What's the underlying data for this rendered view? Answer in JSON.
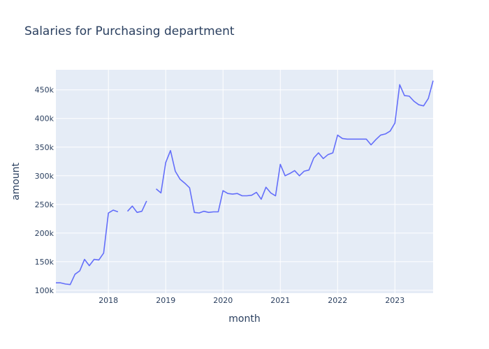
{
  "chart_data": {
    "type": "line",
    "title": "Salaries for Purchasing department",
    "xlabel": "month",
    "ylabel": "amount",
    "grid": true,
    "colors": {
      "plot_bg": "#e5ecf6",
      "line": "#636efa",
      "grid": "#ffffff",
      "text": "#2a3f5f"
    },
    "xlim": [
      "2017-02",
      "2023-09"
    ],
    "ylim": [
      95000,
      485000
    ],
    "x_ticks": [
      "2018",
      "2019",
      "2020",
      "2021",
      "2022",
      "2023"
    ],
    "y_ticks": [
      {
        "value": 100000,
        "label": "100k"
      },
      {
        "value": 150000,
        "label": "150k"
      },
      {
        "value": 200000,
        "label": "200k"
      },
      {
        "value": 250000,
        "label": "250k"
      },
      {
        "value": 300000,
        "label": "300k"
      },
      {
        "value": 350000,
        "label": "350k"
      },
      {
        "value": 400000,
        "label": "400k"
      },
      {
        "value": 450000,
        "label": "450k"
      }
    ],
    "series": [
      {
        "points": [
          [
            "2017-02",
            113000
          ],
          [
            "2017-03",
            113000
          ],
          [
            "2017-04",
            111000
          ],
          [
            "2017-05",
            110000
          ],
          [
            "2017-06",
            128000
          ],
          [
            "2017-07",
            134000
          ],
          [
            "2017-08",
            154000
          ],
          [
            "2017-09",
            143000
          ],
          [
            "2017-10",
            154000
          ],
          [
            "2017-11",
            153000
          ],
          [
            "2017-12",
            165000
          ],
          [
            "2018-01",
            235000
          ],
          [
            "2018-02",
            240000
          ],
          [
            "2018-03",
            237000
          ],
          [
            "2018-04",
            null
          ],
          [
            "2018-05",
            238000
          ],
          [
            "2018-06",
            247000
          ],
          [
            "2018-07",
            236000
          ],
          [
            "2018-08",
            238000
          ],
          [
            "2018-09",
            256000
          ],
          [
            "2018-10",
            null
          ],
          [
            "2018-11",
            277000
          ],
          [
            "2018-12",
            270000
          ],
          [
            "2019-01",
            323000
          ],
          [
            "2019-02",
            344000
          ],
          [
            "2019-03",
            308000
          ],
          [
            "2019-04",
            294000
          ],
          [
            "2019-05",
            287000
          ],
          [
            "2019-06",
            279000
          ],
          [
            "2019-07",
            236000
          ],
          [
            "2019-08",
            235000
          ],
          [
            "2019-09",
            238000
          ],
          [
            "2019-10",
            236000
          ],
          [
            "2019-11",
            237000
          ],
          [
            "2019-12",
            237000
          ],
          [
            "2020-01",
            274000
          ],
          [
            "2020-02",
            269000
          ],
          [
            "2020-03",
            268000
          ],
          [
            "2020-04",
            269000
          ],
          [
            "2020-05",
            265000
          ],
          [
            "2020-06",
            265000
          ],
          [
            "2020-07",
            266000
          ],
          [
            "2020-08",
            271000
          ],
          [
            "2020-09",
            259000
          ],
          [
            "2020-10",
            280000
          ],
          [
            "2020-11",
            270000
          ],
          [
            "2020-12",
            265000
          ],
          [
            "2021-01",
            320000
          ],
          [
            "2021-02",
            300000
          ],
          [
            "2021-03",
            304000
          ],
          [
            "2021-04",
            309000
          ],
          [
            "2021-05",
            300000
          ],
          [
            "2021-06",
            308000
          ],
          [
            "2021-07",
            310000
          ],
          [
            "2021-08",
            331000
          ],
          [
            "2021-09",
            340000
          ],
          [
            "2021-10",
            330000
          ],
          [
            "2021-11",
            337000
          ],
          [
            "2021-12",
            340000
          ],
          [
            "2022-01",
            371000
          ],
          [
            "2022-02",
            365000
          ],
          [
            "2022-03",
            364000
          ],
          [
            "2022-04",
            364000
          ],
          [
            "2022-05",
            364000
          ],
          [
            "2022-06",
            364000
          ],
          [
            "2022-07",
            364000
          ],
          [
            "2022-08",
            354000
          ],
          [
            "2022-09",
            363000
          ],
          [
            "2022-10",
            371000
          ],
          [
            "2022-11",
            373000
          ],
          [
            "2022-12",
            378000
          ],
          [
            "2023-01",
            392000
          ],
          [
            "2023-02",
            459000
          ],
          [
            "2023-03",
            440000
          ],
          [
            "2023-04",
            439000
          ],
          [
            "2023-05",
            430000
          ],
          [
            "2023-06",
            424000
          ],
          [
            "2023-07",
            422000
          ],
          [
            "2023-08",
            435000
          ],
          [
            "2023-09",
            466000
          ]
        ]
      }
    ]
  }
}
